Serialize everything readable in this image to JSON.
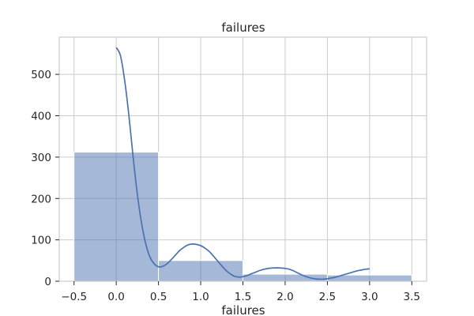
{
  "chart_data": {
    "type": "bar",
    "title": "failures",
    "xlabel": "failures",
    "ylabel": "",
    "xlim": [
      -0.675,
      3.675
    ],
    "ylim": [
      0,
      590
    ],
    "x_ticks": [
      -0.5,
      0.0,
      0.5,
      1.0,
      1.5,
      2.0,
      2.5,
      3.0,
      3.5
    ],
    "x_tick_labels": [
      "−0.5",
      "0.0",
      "0.5",
      "1.0",
      "1.5",
      "2.0",
      "2.5",
      "3.0",
      "3.5"
    ],
    "y_ticks": [
      0,
      100,
      200,
      300,
      400,
      500
    ],
    "y_tick_labels": [
      "0",
      "100",
      "200",
      "300",
      "400",
      "500"
    ],
    "grid": true,
    "bins": [
      {
        "x0": -0.5,
        "x1": 0.5,
        "count": 312
      },
      {
        "x0": 0.5,
        "x1": 1.5,
        "count": 50
      },
      {
        "x0": 1.5,
        "x1": 2.5,
        "count": 17
      },
      {
        "x0": 2.5,
        "x1": 3.5,
        "count": 15
      }
    ],
    "kde": {
      "x": [
        0.0,
        0.05,
        0.1,
        0.15,
        0.2,
        0.25,
        0.3,
        0.35,
        0.4,
        0.45,
        0.5,
        0.55,
        0.6,
        0.65,
        0.7,
        0.75,
        0.8,
        0.85,
        0.9,
        0.95,
        1.0,
        1.05,
        1.1,
        1.15,
        1.2,
        1.25,
        1.3,
        1.35,
        1.4,
        1.45,
        1.5,
        1.55,
        1.6,
        1.65,
        1.7,
        1.75,
        1.8,
        1.85,
        1.9,
        1.95,
        2.0,
        2.05,
        2.1,
        2.15,
        2.2,
        2.25,
        2.3,
        2.35,
        2.4,
        2.45,
        2.5,
        2.55,
        2.6,
        2.65,
        2.7,
        2.75,
        2.8,
        2.85,
        2.9,
        2.95,
        3.0
      ],
      "y": [
        565,
        545,
        485,
        400,
        300,
        210,
        140,
        90,
        58,
        42,
        35,
        36,
        42,
        52,
        63,
        74,
        82,
        88,
        90,
        89,
        86,
        80,
        72,
        61,
        49,
        37,
        26,
        18,
        12,
        10,
        11,
        14,
        18,
        22,
        26,
        29,
        31,
        32,
        32.5,
        32,
        31,
        29,
        25,
        20,
        15,
        11,
        8,
        6,
        5,
        5,
        6,
        8,
        10,
        13,
        16,
        19,
        22,
        25,
        27,
        29,
        30
      ]
    },
    "bar_color": "#4c72b0",
    "bar_alpha": 0.5,
    "line_color": "#4c72b0"
  }
}
